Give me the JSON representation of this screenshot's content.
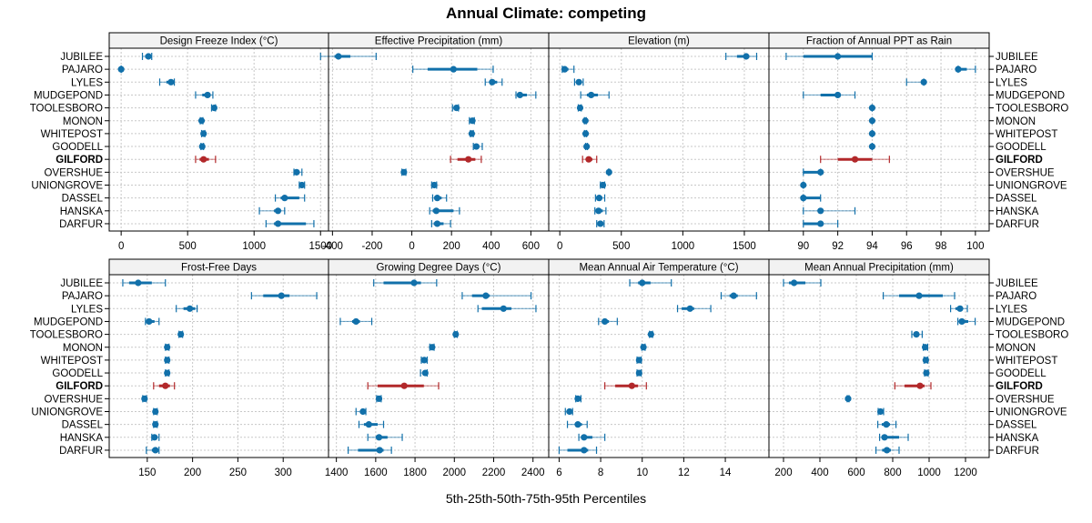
{
  "chart_data": {
    "type": "dotplot-percentile",
    "title": "Annual Climate: competing",
    "xlabel": "5th-25th-50th-75th-95th Percentiles",
    "rows": [
      "JUBILEE",
      "PAJARO",
      "LYLES",
      "MUDGEPOND",
      "TOOLESBORO",
      "MONON",
      "WHITEPOST",
      "GOODELL",
      "GILFORD",
      "OVERSHUE",
      "UNIONGROVE",
      "DASSEL",
      "HANSKA",
      "DARFUR"
    ],
    "highlight_row": "GILFORD",
    "colors": {
      "default": "#1170aa",
      "highlight": "#b2282a",
      "grid": "#c8c8c8",
      "strip_bg": "#f2f2f2"
    },
    "grid": true,
    "panels": [
      {
        "title": "Design Freeze Index (°C)",
        "xlim": [
          -90,
          1560
        ],
        "ticks": [
          0,
          500,
          1000,
          1500
        ],
        "tick_labels": [
          "0",
          "500",
          "1000",
          "1500"
        ],
        "values": [
          [
            160,
            180,
            205,
            215,
            230
          ],
          [
            0,
            0,
            0,
            0,
            0
          ],
          [
            290,
            340,
            375,
            385,
            400
          ],
          [
            560,
            610,
            650,
            670,
            690
          ],
          [
            680,
            690,
            700,
            705,
            710
          ],
          [
            595,
            600,
            605,
            610,
            615
          ],
          [
            605,
            610,
            620,
            625,
            630
          ],
          [
            600,
            605,
            610,
            615,
            620
          ],
          [
            560,
            590,
            620,
            660,
            710
          ],
          [
            1300,
            1310,
            1320,
            1340,
            1360
          ],
          [
            1340,
            1350,
            1360,
            1370,
            1380
          ],
          [
            1160,
            1200,
            1230,
            1340,
            1380
          ],
          [
            1040,
            1150,
            1180,
            1200,
            1230
          ],
          [
            1090,
            1150,
            1180,
            1390,
            1450
          ]
        ]
      },
      {
        "title": "Effective Precipitation (mm)",
        "xlim": [
          -420,
          690
        ],
        "ticks": [
          -400,
          -200,
          0,
          200,
          400,
          600
        ],
        "tick_labels": [
          "-400",
          "-200",
          "0",
          "200",
          "400",
          "600"
        ],
        "values": [
          [
            -460,
            -390,
            -370,
            -310,
            -180
          ],
          [
            5,
            80,
            210,
            330,
            410
          ],
          [
            370,
            390,
            405,
            430,
            455
          ],
          [
            525,
            535,
            545,
            580,
            625
          ],
          [
            205,
            215,
            225,
            230,
            235
          ],
          [
            290,
            300,
            305,
            310,
            315
          ],
          [
            295,
            300,
            302,
            305,
            310
          ],
          [
            310,
            320,
            325,
            340,
            355
          ],
          [
            195,
            230,
            285,
            320,
            350
          ],
          [
            -50,
            -45,
            -40,
            -35,
            -30
          ],
          [
            100,
            105,
            113,
            120,
            125
          ],
          [
            105,
            115,
            128,
            150,
            175
          ],
          [
            90,
            105,
            123,
            210,
            240
          ],
          [
            100,
            110,
            128,
            160,
            195
          ]
        ]
      },
      {
        "title": "Elevation (m)",
        "xlim": [
          -90,
          1700
        ],
        "ticks": [
          0,
          500,
          1000,
          1500
        ],
        "tick_labels": [
          "0",
          "500",
          "1000",
          "1500"
        ],
        "values": [
          [
            1350,
            1440,
            1515,
            1540,
            1600
          ],
          [
            20,
            25,
            40,
            70,
            115
          ],
          [
            120,
            135,
            155,
            170,
            190
          ],
          [
            170,
            220,
            255,
            310,
            400
          ],
          [
            150,
            160,
            165,
            170,
            175
          ],
          [
            200,
            205,
            208,
            210,
            215
          ],
          [
            200,
            205,
            210,
            212,
            218
          ],
          [
            210,
            215,
            218,
            222,
            225
          ],
          [
            185,
            215,
            235,
            265,
            300
          ],
          [
            395,
            398,
            400,
            403,
            405
          ],
          [
            330,
            340,
            350,
            360,
            365
          ],
          [
            290,
            305,
            320,
            345,
            365
          ],
          [
            285,
            300,
            315,
            350,
            375
          ],
          [
            300,
            320,
            330,
            345,
            360
          ]
        ]
      },
      {
        "title": "Fraction of Annual PPT as Rain",
        "xlim": [
          88.0,
          100.8
        ],
        "ticks": [
          90,
          92,
          94,
          96,
          98,
          100
        ],
        "tick_labels": [
          "90",
          "92",
          "94",
          "96",
          "98",
          "100"
        ],
        "values": [
          [
            89,
            90,
            92,
            94,
            94
          ],
          [
            99,
            99,
            99,
            99.5,
            100
          ],
          [
            96,
            97,
            97,
            97,
            97
          ],
          [
            90,
            91,
            92,
            92,
            93
          ],
          [
            94,
            94,
            94,
            94,
            94
          ],
          [
            94,
            94,
            94,
            94,
            94
          ],
          [
            94,
            94,
            94,
            94,
            94
          ],
          [
            94,
            94,
            94,
            94,
            94
          ],
          [
            91,
            92,
            93,
            94,
            95
          ],
          [
            90,
            90,
            91,
            91,
            91
          ],
          [
            90,
            90,
            90,
            90,
            90
          ],
          [
            90,
            90,
            90,
            91,
            91
          ],
          [
            90,
            91,
            91,
            91,
            93
          ],
          [
            90,
            90,
            91,
            91,
            92
          ]
        ]
      },
      {
        "title": "Frost-Free Days",
        "xlim": [
          108,
          350
        ],
        "ticks": [
          150,
          200,
          250,
          300
        ],
        "tick_labels": [
          "150",
          "200",
          "250",
          "300"
        ],
        "values": [
          [
            123,
            130,
            140,
            155,
            170
          ],
          [
            265,
            278,
            298,
            307,
            337
          ],
          [
            182,
            190,
            197,
            203,
            205
          ],
          [
            148,
            150,
            152,
            158,
            163
          ],
          [
            185,
            186,
            187,
            188,
            189
          ],
          [
            170,
            171,
            172,
            173,
            174
          ],
          [
            170,
            171,
            172,
            173,
            174
          ],
          [
            170,
            171,
            172,
            173,
            174
          ],
          [
            157,
            163,
            170,
            175,
            180
          ],
          [
            145,
            146,
            147,
            148,
            149
          ],
          [
            157,
            158,
            159,
            160,
            161
          ],
          [
            157,
            158,
            159,
            160,
            161
          ],
          [
            155,
            157,
            158,
            160,
            163
          ],
          [
            149,
            155,
            159,
            161,
            163
          ]
        ]
      },
      {
        "title": "Growing Degree Days (°C)",
        "xlim": [
          1360,
          2480
        ],
        "ticks": [
          1400,
          1600,
          1800,
          2000,
          2200,
          2400
        ],
        "tick_labels": [
          "1400",
          "1600",
          "1800",
          "2000",
          "2200",
          "2400"
        ],
        "values": [
          [
            1590,
            1640,
            1795,
            1830,
            1910
          ],
          [
            2040,
            2090,
            2160,
            2180,
            2390
          ],
          [
            2120,
            2140,
            2250,
            2290,
            2415
          ],
          [
            1420,
            1480,
            1500,
            1520,
            1580
          ],
          [
            2000,
            2003,
            2007,
            2010,
            2015
          ],
          [
            1875,
            1880,
            1887,
            1893,
            1897
          ],
          [
            1832,
            1840,
            1847,
            1852,
            1862
          ],
          [
            1828,
            1840,
            1852,
            1857,
            1862
          ],
          [
            1560,
            1610,
            1745,
            1845,
            1920
          ],
          [
            1605,
            1610,
            1617,
            1622,
            1628
          ],
          [
            1500,
            1520,
            1535,
            1545,
            1550
          ],
          [
            1515,
            1540,
            1565,
            1610,
            1640
          ],
          [
            1560,
            1600,
            1617,
            1660,
            1735
          ],
          [
            1460,
            1510,
            1620,
            1640,
            1680
          ]
        ]
      },
      {
        "title": "Mean Annual Air Temperature (°C)",
        "xlim": [
          5.5,
          16.1
        ],
        "ticks": [
          6,
          8,
          10,
          12,
          14
        ],
        "tick_labels": [
          "6",
          "8",
          "10",
          "12",
          "14"
        ],
        "values": [
          [
            9.4,
            9.8,
            10.0,
            10.4,
            11.4
          ],
          [
            13.8,
            14.2,
            14.4,
            14.6,
            15.5
          ],
          [
            11.7,
            11.9,
            12.3,
            12.5,
            13.3
          ],
          [
            7.9,
            8.1,
            8.2,
            8.4,
            8.8
          ],
          [
            10.35,
            10.38,
            10.42,
            10.46,
            10.5
          ],
          [
            9.98,
            10.02,
            10.06,
            10.1,
            10.14
          ],
          [
            9.75,
            9.8,
            9.85,
            9.9,
            9.95
          ],
          [
            9.75,
            9.8,
            9.85,
            9.9,
            9.95
          ],
          [
            8.2,
            8.7,
            9.5,
            9.8,
            10.2
          ],
          [
            6.8,
            6.85,
            6.9,
            6.95,
            7.05
          ],
          [
            6.3,
            6.4,
            6.5,
            6.6,
            6.65
          ],
          [
            6.4,
            6.8,
            6.9,
            7.1,
            7.35
          ],
          [
            6.95,
            7.05,
            7.2,
            7.6,
            8.2
          ],
          [
            6.0,
            6.4,
            7.2,
            7.4,
            7.8
          ]
        ]
      },
      {
        "title": "Mean Annual Precipitation (mm)",
        "xlim": [
          120,
          1330
        ],
        "ticks": [
          200,
          400,
          600,
          800,
          1000,
          1200
        ],
        "tick_labels": [
          "200",
          "400",
          "600",
          "800",
          "1000",
          "1200"
        ],
        "values": [
          [
            200,
            230,
            258,
            320,
            405
          ],
          [
            748,
            835,
            945,
            1075,
            1140
          ],
          [
            1118,
            1145,
            1170,
            1185,
            1210
          ],
          [
            1158,
            1170,
            1180,
            1215,
            1253
          ],
          [
            905,
            920,
            930,
            945,
            962
          ],
          [
            968,
            972,
            978,
            985,
            992
          ],
          [
            972,
            976,
            982,
            988,
            993
          ],
          [
            975,
            980,
            985,
            990,
            995
          ],
          [
            812,
            865,
            950,
            975,
            1010
          ],
          [
            550,
            552,
            555,
            558,
            560
          ],
          [
            720,
            725,
            733,
            742,
            750
          ],
          [
            718,
            740,
            765,
            785,
            818
          ],
          [
            728,
            745,
            755,
            835,
            885
          ],
          [
            708,
            742,
            768,
            790,
            835
          ]
        ]
      }
    ]
  }
}
